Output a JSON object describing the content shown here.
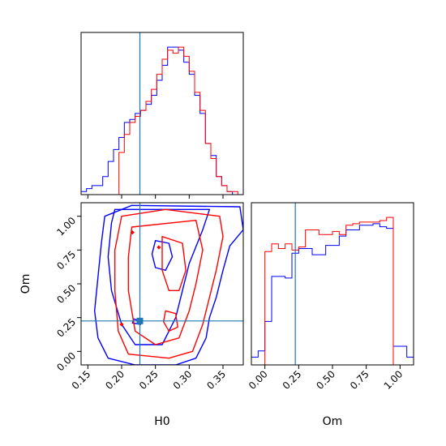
{
  "colors": {
    "series_a": "#0000ff",
    "series_b": "#ff0000",
    "truth": "#1f77b4"
  },
  "chart_data": {
    "type": "corner",
    "parameters": [
      "H0",
      "Om"
    ],
    "truth": {
      "H0": 0.227,
      "Om": 0.225
    },
    "series": [
      {
        "color": "#0000ff"
      },
      {
        "color": "#ff0000"
      }
    ],
    "panels": [
      {
        "id": "hist-H0",
        "type": "histogram",
        "x_range": [
          0.14,
          0.38
        ],
        "bin_edges": [
          0.14,
          0.148,
          0.156,
          0.164,
          0.172,
          0.18,
          0.188,
          0.196,
          0.204,
          0.212,
          0.22,
          0.228,
          0.236,
          0.244,
          0.252,
          0.26,
          0.268,
          0.276,
          0.284,
          0.292,
          0.3,
          0.308,
          0.316,
          0.324,
          0.332,
          0.34,
          0.348,
          0.356,
          0.364,
          0.372,
          0.38
        ],
        "counts": {
          "blue": [
            1,
            2,
            3,
            3,
            6,
            11,
            15,
            19,
            24,
            25,
            27,
            28,
            30,
            33,
            38,
            43,
            49,
            49,
            48,
            44,
            40,
            33,
            27,
            17,
            13,
            6,
            3,
            1,
            0,
            0
          ],
          "red": [
            0,
            0,
            0,
            0,
            0,
            0,
            0,
            14,
            20,
            24,
            26,
            28,
            31,
            35,
            40,
            45,
            48,
            47,
            49,
            46,
            41,
            34,
            28,
            17,
            12,
            6,
            3,
            1,
            1,
            0
          ]
        }
      },
      {
        "id": "hist-Om",
        "type": "histogram",
        "x_range": [
          -0.1,
          1.1
        ],
        "bin_edges": [
          -0.1,
          -0.05,
          0.0,
          0.05,
          0.1,
          0.15,
          0.2,
          0.25,
          0.3,
          0.35,
          0.4,
          0.45,
          0.5,
          0.55,
          0.6,
          0.65,
          0.7,
          0.75,
          0.8,
          0.85,
          0.9,
          0.95,
          1.0,
          1.05,
          1.1
        ],
        "counts": {
          "blue": [
            0.05,
            0.09,
            0.28,
            0.57,
            0.57,
            0.56,
            0.72,
            0.75,
            0.75,
            0.71,
            0.71,
            0.77,
            0.77,
            0.83,
            0.87,
            0.87,
            0.9,
            0.9,
            0.91,
            0.89,
            0.88,
            0.12,
            0.12,
            0.05
          ],
          "red": [
            0,
            0,
            0.73,
            0.78,
            0.75,
            0.78,
            0.74,
            0.76,
            0.87,
            0.87,
            0.84,
            0.84,
            0.86,
            0.84,
            0.9,
            0.91,
            0.92,
            0.92,
            0.92,
            0.93,
            0.95,
            0.0,
            0,
            0
          ]
        }
      },
      {
        "id": "contour-H0-Om",
        "type": "contour",
        "x_range": [
          0.14,
          0.38
        ],
        "y_range": [
          -0.1,
          1.1
        ],
        "levels": {
          "blue": [
            [
              [
                0.215,
                1.08
              ],
              [
                0.375,
                1.07
              ],
              [
                0.38,
                0.9
              ],
              [
                0.36,
                0.78
              ],
              [
                0.35,
                0.6
              ],
              [
                0.34,
                0.4
              ],
              [
                0.33,
                0.25
              ],
              [
                0.325,
                0.1
              ],
              [
                0.31,
                -0.05
              ],
              [
                0.28,
                -0.1
              ],
              [
                0.22,
                -0.1
              ],
              [
                0.18,
                -0.05
              ],
              [
                0.165,
                0.1
              ],
              [
                0.16,
                0.3
              ],
              [
                0.165,
                0.55
              ],
              [
                0.17,
                0.8
              ],
              [
                0.175,
                1.0
              ],
              [
                0.215,
                1.08
              ]
            ],
            [
              [
                0.19,
                1.05
              ],
              [
                0.33,
                1.05
              ],
              [
                0.32,
                0.9
              ],
              [
                0.3,
                0.65
              ],
              [
                0.29,
                0.45
              ],
              [
                0.28,
                0.25
              ],
              [
                0.26,
                0.05
              ],
              [
                0.22,
                0.05
              ],
              [
                0.2,
                0.2
              ],
              [
                0.185,
                0.45
              ],
              [
                0.18,
                0.7
              ],
              [
                0.185,
                0.95
              ],
              [
                0.19,
                1.05
              ]
            ],
            [
              [
                0.25,
                0.82
              ],
              [
                0.27,
                0.8
              ],
              [
                0.275,
                0.7
              ],
              [
                0.265,
                0.6
              ],
              [
                0.25,
                0.62
              ],
              [
                0.245,
                0.72
              ],
              [
                0.25,
                0.82
              ]
            ],
            [
              [
                0.218,
                0.24
              ],
              [
                0.23,
                0.22
              ],
              [
                0.228,
                0.2
              ],
              [
                0.216,
                0.21
              ],
              [
                0.218,
                0.24
              ]
            ]
          ],
          "red": [
            [
              [
                0.2,
                1.0
              ],
              [
                0.265,
                1.05
              ],
              [
                0.345,
                1.0
              ],
              [
                0.35,
                0.85
              ],
              [
                0.34,
                0.6
              ],
              [
                0.33,
                0.4
              ],
              [
                0.32,
                0.2
              ],
              [
                0.305,
                0.0
              ],
              [
                0.27,
                -0.05
              ],
              [
                0.21,
                -0.02
              ],
              [
                0.195,
                0.15
              ],
              [
                0.19,
                0.45
              ],
              [
                0.19,
                0.75
              ],
              [
                0.2,
                1.0
              ]
            ],
            [
              [
                0.215,
                0.92
              ],
              [
                0.31,
                0.97
              ],
              [
                0.32,
                0.75
              ],
              [
                0.31,
                0.5
              ],
              [
                0.3,
                0.3
              ],
              [
                0.285,
                0.1
              ],
              [
                0.25,
                0.05
              ],
              [
                0.22,
                0.15
              ],
              [
                0.21,
                0.45
              ],
              [
                0.21,
                0.7
              ],
              [
                0.215,
                0.92
              ]
            ],
            [
              [
                0.26,
                0.85
              ],
              [
                0.29,
                0.8
              ],
              [
                0.295,
                0.6
              ],
              [
                0.285,
                0.45
              ],
              [
                0.27,
                0.45
              ],
              [
                0.26,
                0.6
              ],
              [
                0.26,
                0.85
              ]
            ],
            [
              [
                0.265,
                0.3
              ],
              [
                0.28,
                0.28
              ],
              [
                0.283,
                0.18
              ],
              [
                0.27,
                0.15
              ],
              [
                0.262,
                0.22
              ],
              [
                0.265,
                0.3
              ]
            ]
          ]
        },
        "small_markers": [
          {
            "color": "red",
            "x": 0.216,
            "y": 0.88
          },
          {
            "color": "red",
            "x": 0.2,
            "y": 0.2
          },
          {
            "color": "red",
            "x": 0.255,
            "y": 0.77
          }
        ]
      }
    ],
    "axes": {
      "H0": {
        "label": "H0",
        "ticks": [
          0.15,
          0.2,
          0.25,
          0.3,
          0.35
        ],
        "tick_labels": [
          "0.15",
          "0.20",
          "0.25",
          "0.30",
          "0.35"
        ]
      },
      "Om": {
        "label": "Om",
        "ticks": [
          0.0,
          0.25,
          0.5,
          0.75,
          1.0
        ],
        "tick_labels": [
          "0.00",
          "0.25",
          "0.50",
          "0.75",
          "1.00"
        ]
      }
    }
  }
}
